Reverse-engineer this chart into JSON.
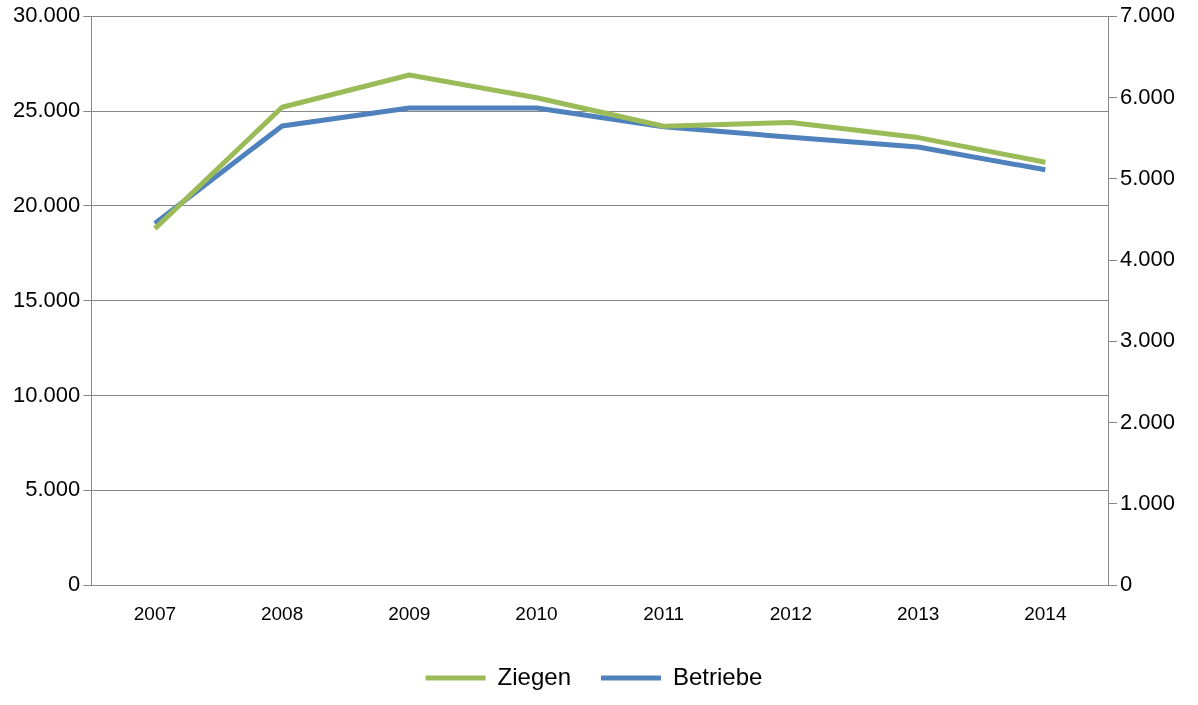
{
  "chart_data": {
    "type": "line",
    "categories": [
      "2007",
      "2008",
      "2009",
      "2010",
      "2011",
      "2012",
      "2013",
      "2014"
    ],
    "series": [
      {
        "name": "Ziegen",
        "color": "#9bbb59",
        "values": [
          18800,
          25200,
          26900,
          25700,
          24200,
          24400,
          23600,
          22300
        ]
      },
      {
        "name": "Betriebe",
        "color": "#4f81bd",
        "axis": "y2",
        "values": [
          4450,
          5650,
          5870,
          5870,
          5640,
          5510,
          5390,
          5110
        ]
      }
    ],
    "ylim": [
      0,
      30000
    ],
    "yticks": [
      {
        "value": 0,
        "label": "0"
      },
      {
        "value": 5000,
        "label": "5.000"
      },
      {
        "value": 10000,
        "label": "10.000"
      },
      {
        "value": 15000,
        "label": "15.000"
      },
      {
        "value": 20000,
        "label": "20.000"
      },
      {
        "value": 25000,
        "label": "25.000"
      },
      {
        "value": 30000,
        "label": "30.000"
      }
    ],
    "y2lim": [
      0,
      7000
    ],
    "y2ticks": [
      {
        "value": 0,
        "label": "0"
      },
      {
        "value": 1000,
        "label": "1.000"
      },
      {
        "value": 2000,
        "label": "2.000"
      },
      {
        "value": 3000,
        "label": "3.000"
      },
      {
        "value": 4000,
        "label": "4.000"
      },
      {
        "value": 5000,
        "label": "5.000"
      },
      {
        "value": 6000,
        "label": "6.000"
      },
      {
        "value": 7000,
        "label": "7.000"
      }
    ],
    "grid": "y",
    "legend": "bottom",
    "marker": "none",
    "line_style": "solid"
  }
}
